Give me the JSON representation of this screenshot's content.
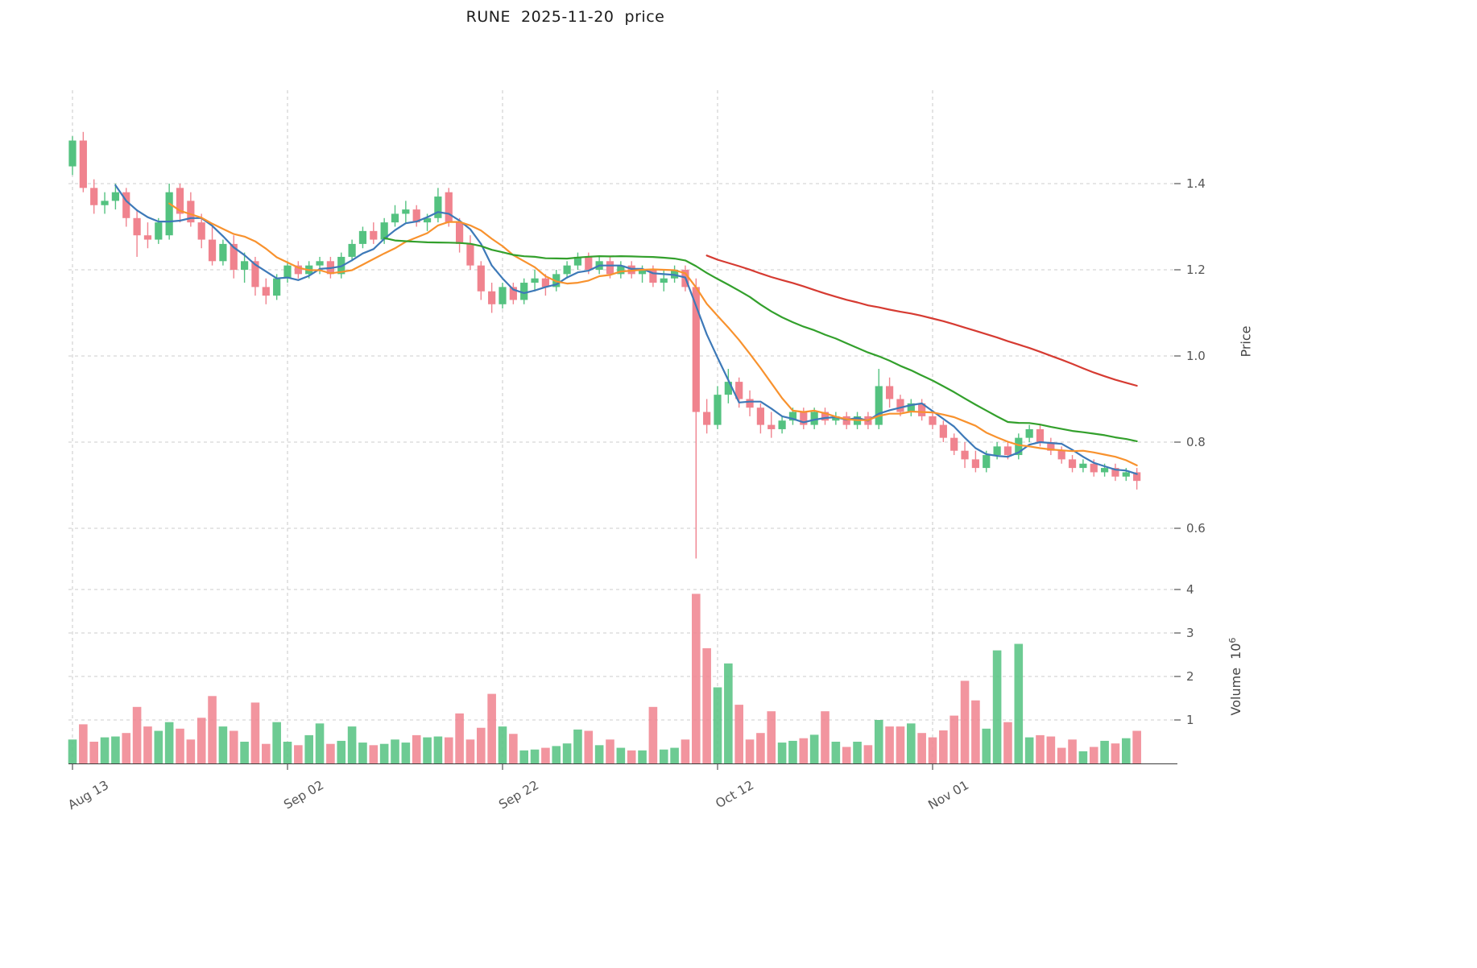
{
  "title": "RUNE  2025-11-20  price",
  "axes": {
    "price_label": "Price",
    "volume_label": "Volume",
    "volume_base": "10",
    "volume_exp": "6"
  },
  "colors": {
    "up": "#54c280",
    "down": "#f0838e",
    "grid": "#cdcdcd",
    "tick_text": "#555555"
  },
  "chart_data": {
    "type": "candlestick",
    "title": "RUNE 2025-11-20 price",
    "ylabel": "Price",
    "volume_ylabel": "Volume 10^6",
    "start_date": "2025-08-13",
    "end_date": "2025-11-20",
    "price_axis_range": [
      0.5,
      1.56
    ],
    "volume_axis_range_millions": [
      0,
      4.2
    ],
    "grid": true,
    "price_ticks": [
      0.6,
      0.8,
      1.0,
      1.2,
      1.4
    ],
    "volume_ticks": [
      1,
      2,
      3,
      4
    ],
    "volume_unit": 1000000,
    "x_ticks": [
      {
        "i": 0,
        "label": "Aug 13"
      },
      {
        "i": 20,
        "label": "Sep 02"
      },
      {
        "i": 40,
        "label": "Sep 22"
      },
      {
        "i": 60,
        "label": "Oct 12"
      },
      {
        "i": 80,
        "label": "Nov 01"
      }
    ],
    "moving_averages": [
      {
        "label": "MA5",
        "period": 5,
        "color": "#3d79b8"
      },
      {
        "label": "MA10",
        "period": 10,
        "color": "#f8922e"
      },
      {
        "label": "MA30",
        "period": 30,
        "color": "#33a02c"
      },
      {
        "label": "MA60",
        "period": 60,
        "color": "#d63b32"
      }
    ],
    "candle_fields": [
      "open",
      "high",
      "low",
      "close",
      "volume_millions"
    ],
    "candles": [
      [
        1.44,
        1.51,
        1.42,
        1.5,
        0.55
      ],
      [
        1.5,
        1.52,
        1.38,
        1.39,
        0.9
      ],
      [
        1.39,
        1.41,
        1.33,
        1.35,
        0.5
      ],
      [
        1.35,
        1.38,
        1.33,
        1.36,
        0.6
      ],
      [
        1.36,
        1.4,
        1.34,
        1.38,
        0.62
      ],
      [
        1.38,
        1.39,
        1.3,
        1.32,
        0.7
      ],
      [
        1.32,
        1.34,
        1.23,
        1.28,
        1.3
      ],
      [
        1.28,
        1.31,
        1.25,
        1.27,
        0.85
      ],
      [
        1.27,
        1.32,
        1.26,
        1.31,
        0.75
      ],
      [
        1.28,
        1.4,
        1.27,
        1.38,
        0.95
      ],
      [
        1.39,
        1.4,
        1.31,
        1.33,
        0.8
      ],
      [
        1.36,
        1.38,
        1.3,
        1.31,
        0.55
      ],
      [
        1.31,
        1.33,
        1.25,
        1.27,
        1.05
      ],
      [
        1.27,
        1.3,
        1.21,
        1.22,
        1.55
      ],
      [
        1.22,
        1.27,
        1.21,
        1.26,
        0.85
      ],
      [
        1.26,
        1.28,
        1.18,
        1.2,
        0.75
      ],
      [
        1.2,
        1.24,
        1.17,
        1.22,
        0.5
      ],
      [
        1.22,
        1.23,
        1.14,
        1.16,
        1.4
      ],
      [
        1.16,
        1.18,
        1.12,
        1.14,
        0.45
      ],
      [
        1.14,
        1.19,
        1.13,
        1.18,
        0.95
      ],
      [
        1.18,
        1.22,
        1.17,
        1.21,
        0.5
      ],
      [
        1.21,
        1.22,
        1.18,
        1.19,
        0.42
      ],
      [
        1.19,
        1.22,
        1.18,
        1.21,
        0.65
      ],
      [
        1.21,
        1.23,
        1.19,
        1.22,
        0.92
      ],
      [
        1.22,
        1.23,
        1.18,
        1.19,
        0.45
      ],
      [
        1.19,
        1.24,
        1.18,
        1.23,
        0.52
      ],
      [
        1.23,
        1.27,
        1.22,
        1.26,
        0.85
      ],
      [
        1.26,
        1.3,
        1.25,
        1.29,
        0.48
      ],
      [
        1.29,
        1.31,
        1.26,
        1.27,
        0.42
      ],
      [
        1.27,
        1.32,
        1.26,
        1.31,
        0.45
      ],
      [
        1.31,
        1.35,
        1.3,
        1.33,
        0.55
      ],
      [
        1.33,
        1.36,
        1.31,
        1.34,
        0.48
      ],
      [
        1.34,
        1.35,
        1.3,
        1.31,
        0.65
      ],
      [
        1.31,
        1.33,
        1.29,
        1.32,
        0.6
      ],
      [
        1.32,
        1.39,
        1.31,
        1.37,
        0.62
      ],
      [
        1.38,
        1.39,
        1.3,
        1.31,
        0.6
      ],
      [
        1.31,
        1.32,
        1.24,
        1.26,
        1.15
      ],
      [
        1.26,
        1.28,
        1.2,
        1.21,
        0.55
      ],
      [
        1.21,
        1.22,
        1.13,
        1.15,
        0.82
      ],
      [
        1.15,
        1.17,
        1.1,
        1.12,
        1.6
      ],
      [
        1.12,
        1.17,
        1.11,
        1.16,
        0.85
      ],
      [
        1.16,
        1.17,
        1.12,
        1.13,
        0.68
      ],
      [
        1.13,
        1.18,
        1.12,
        1.17,
        0.3
      ],
      [
        1.17,
        1.2,
        1.15,
        1.18,
        0.32
      ],
      [
        1.18,
        1.19,
        1.14,
        1.16,
        0.36
      ],
      [
        1.16,
        1.2,
        1.15,
        1.19,
        0.4
      ],
      [
        1.19,
        1.22,
        1.18,
        1.21,
        0.46
      ],
      [
        1.21,
        1.24,
        1.2,
        1.23,
        0.78
      ],
      [
        1.23,
        1.24,
        1.19,
        1.2,
        0.75
      ],
      [
        1.2,
        1.23,
        1.19,
        1.22,
        0.42
      ],
      [
        1.22,
        1.23,
        1.18,
        1.19,
        0.55
      ],
      [
        1.19,
        1.22,
        1.18,
        1.21,
        0.36
      ],
      [
        1.21,
        1.22,
        1.18,
        1.19,
        0.3
      ],
      [
        1.19,
        1.21,
        1.17,
        1.2,
        0.3
      ],
      [
        1.2,
        1.21,
        1.16,
        1.17,
        1.3
      ],
      [
        1.17,
        1.2,
        1.15,
        1.18,
        0.32
      ],
      [
        1.18,
        1.21,
        1.17,
        1.2,
        0.36
      ],
      [
        1.2,
        1.21,
        1.15,
        1.16,
        0.55
      ],
      [
        1.16,
        1.18,
        0.53,
        0.87,
        3.9
      ],
      [
        0.87,
        0.9,
        0.82,
        0.84,
        2.65
      ],
      [
        0.84,
        0.93,
        0.83,
        0.91,
        1.75
      ],
      [
        0.91,
        0.97,
        0.89,
        0.94,
        2.3
      ],
      [
        0.94,
        0.95,
        0.88,
        0.9,
        1.35
      ],
      [
        0.9,
        0.92,
        0.86,
        0.88,
        0.55
      ],
      [
        0.88,
        0.89,
        0.82,
        0.84,
        0.7
      ],
      [
        0.84,
        0.87,
        0.81,
        0.83,
        1.2
      ],
      [
        0.83,
        0.86,
        0.82,
        0.85,
        0.48
      ],
      [
        0.85,
        0.88,
        0.84,
        0.87,
        0.52
      ],
      [
        0.87,
        0.88,
        0.83,
        0.84,
        0.58
      ],
      [
        0.84,
        0.88,
        0.83,
        0.87,
        0.66
      ],
      [
        0.87,
        0.88,
        0.84,
        0.85,
        1.2
      ],
      [
        0.85,
        0.87,
        0.84,
        0.86,
        0.5
      ],
      [
        0.86,
        0.87,
        0.83,
        0.84,
        0.38
      ],
      [
        0.84,
        0.87,
        0.83,
        0.86,
        0.5
      ],
      [
        0.86,
        0.87,
        0.83,
        0.84,
        0.42
      ],
      [
        0.84,
        0.97,
        0.83,
        0.93,
        1.0
      ],
      [
        0.93,
        0.95,
        0.88,
        0.9,
        0.85
      ],
      [
        0.9,
        0.91,
        0.86,
        0.87,
        0.85
      ],
      [
        0.87,
        0.9,
        0.86,
        0.89,
        0.92
      ],
      [
        0.89,
        0.9,
        0.85,
        0.86,
        0.7
      ],
      [
        0.86,
        0.87,
        0.83,
        0.84,
        0.6
      ],
      [
        0.84,
        0.85,
        0.8,
        0.81,
        0.76
      ],
      [
        0.81,
        0.82,
        0.77,
        0.78,
        1.1
      ],
      [
        0.78,
        0.8,
        0.74,
        0.76,
        1.9
      ],
      [
        0.76,
        0.78,
        0.73,
        0.74,
        1.45
      ],
      [
        0.74,
        0.78,
        0.73,
        0.77,
        0.8
      ],
      [
        0.77,
        0.8,
        0.76,
        0.79,
        2.6
      ],
      [
        0.79,
        0.8,
        0.76,
        0.77,
        0.95
      ],
      [
        0.77,
        0.82,
        0.76,
        0.81,
        2.75
      ],
      [
        0.81,
        0.84,
        0.8,
        0.83,
        0.6
      ],
      [
        0.83,
        0.84,
        0.79,
        0.8,
        0.65
      ],
      [
        0.8,
        0.81,
        0.77,
        0.78,
        0.62
      ],
      [
        0.78,
        0.79,
        0.75,
        0.76,
        0.36
      ],
      [
        0.76,
        0.77,
        0.73,
        0.74,
        0.55
      ],
      [
        0.74,
        0.76,
        0.73,
        0.75,
        0.28
      ],
      [
        0.75,
        0.76,
        0.72,
        0.73,
        0.38
      ],
      [
        0.73,
        0.75,
        0.72,
        0.74,
        0.52
      ],
      [
        0.74,
        0.75,
        0.71,
        0.72,
        0.46
      ],
      [
        0.72,
        0.74,
        0.71,
        0.73,
        0.58
      ],
      [
        0.73,
        0.74,
        0.69,
        0.71,
        0.75
      ]
    ]
  }
}
